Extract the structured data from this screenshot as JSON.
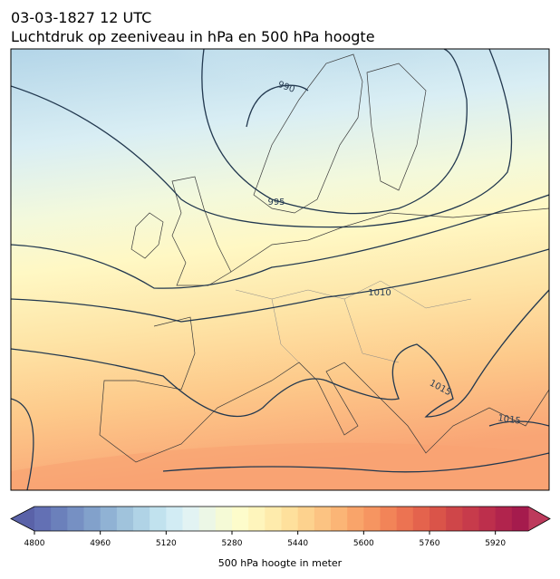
{
  "header": {
    "date": "03-03-1827 12 UTC",
    "subtitle": "Luchtdruk op zeeniveau in hPa en 500 hPa hoogte"
  },
  "isobar_labels": [
    990,
    995,
    1010,
    1015,
    1015
  ],
  "colorbar": {
    "label": "500 hPa hoogte in meter",
    "lim": [
      4800,
      6000
    ],
    "ticks": [
      4800,
      4960,
      5120,
      5280,
      5440,
      5600,
      5760,
      5920
    ],
    "colors": [
      "#6370b4",
      "#6b80bb",
      "#7690c3",
      "#82a1cb",
      "#90b2d4",
      "#a0c3dc",
      "#b0d3e6",
      "#c1e2ee",
      "#d2ecf4",
      "#e2f3f3",
      "#ecf7e6",
      "#f5fad6",
      "#fdfccb",
      "#fef5bc",
      "#feebac",
      "#fee09c",
      "#fdd28e",
      "#fcc382",
      "#fbb576",
      "#f9a46a",
      "#f69561",
      "#f28458",
      "#ec7352",
      "#e4634d",
      "#da5449",
      "#cf4649",
      "#c73b4b",
      "#bd2f4c",
      "#b1244d",
      "#a51b4d"
    ],
    "under_color": "#5a62a8",
    "over_color": "#bd3a5c"
  }
}
